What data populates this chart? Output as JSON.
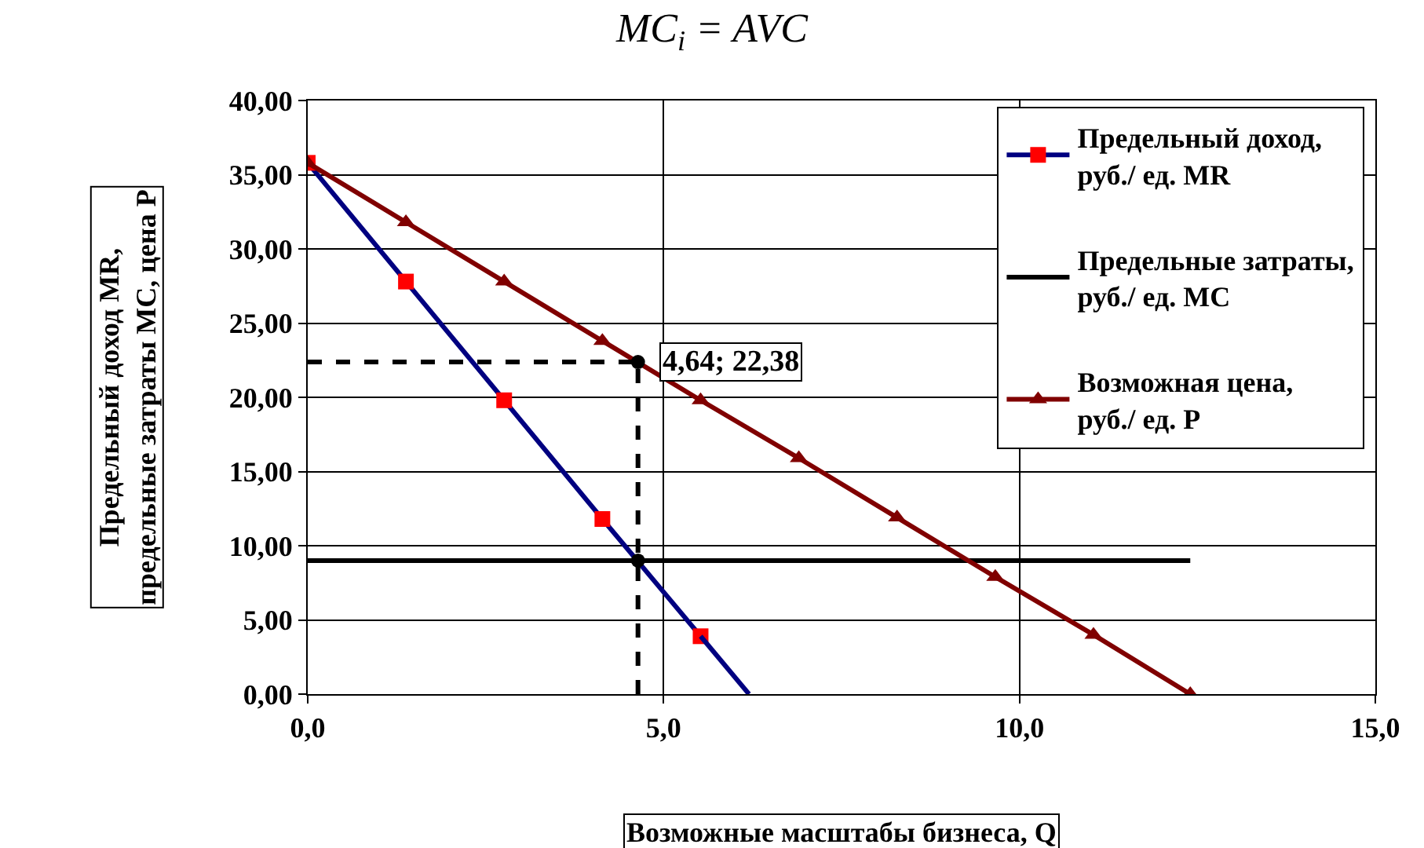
{
  "chart_data": {
    "type": "line",
    "title": "MC$_{i}$ = AVC",
    "xlabel": "Возможные масштабы бизнеса, Q",
    "ylabel": "Предельный доход MR, предельные затраты MC, цена P",
    "series": [
      {
        "name": "Предельный доход, руб./ ед. MR",
        "color": "#000080",
        "colors": [
          "#ff0000",
          "#ff0000",
          "#ff0000",
          "#ff0000",
          "#ff0000"
        ],
        "marker": "square",
        "x": [
          0,
          1.38,
          2.76,
          4.14,
          5.52
        ],
        "values": [
          35.8,
          27.8,
          19.8,
          11.8,
          3.9
        ]
      },
      {
        "type": "line",
        "color": "#000080",
        "marker": "none",
        "x": [
          5.52,
          6.2
        ],
        "values": [
          3.9,
          0
        ]
      },
      {
        "name": "Предельные затраты, руб./ ед. MC",
        "color": "#000000",
        "marker": "none",
        "x": [
          0,
          12.4
        ],
        "values": [
          9.0,
          9.0
        ]
      },
      {
        "name": "Возможная цена, руб./ ед. P",
        "color": "#800000",
        "marker": "triangle",
        "x": [
          0,
          1.38,
          2.76,
          4.14,
          5.52,
          6.9,
          8.28,
          9.66,
          11.04,
          12.4
        ],
        "values": [
          35.8,
          31.8,
          27.8,
          23.8,
          19.8,
          15.9,
          11.9,
          7.9,
          4.0,
          0
        ]
      },
      {
        "type": "line",
        "color": "#000000",
        "marker": "none",
        "line_style": "dashed",
        "x": [
          0,
          4.64
        ],
        "values": [
          22.38,
          22.38
        ]
      },
      {
        "type": "line",
        "color": "#000000",
        "marker": "none",
        "line_style": "dashed",
        "x": [
          4.64,
          4.64
        ],
        "values": [
          0,
          22.38
        ]
      },
      {
        "type": "scatter",
        "color": "#000000",
        "marker": "circle",
        "x": [
          4.64,
          4.64
        ],
        "values": [
          22.38,
          9.0
        ]
      }
    ],
    "annotations": [
      {
        "text": "4,64; 22,38",
        "x": 4.64,
        "y": 22.38
      }
    ],
    "xlim": [
      0,
      15
    ],
    "xticks": [
      {
        "value": 0,
        "label": "0,0"
      },
      {
        "value": 5,
        "label": "5,0"
      },
      {
        "value": 10,
        "label": "10,0"
      },
      {
        "value": 15,
        "label": "15,0"
      }
    ],
    "ylim": [
      0,
      40
    ],
    "yticks": [
      {
        "value": 0,
        "label": "0,00"
      },
      {
        "value": 5,
        "label": "5,00"
      },
      {
        "value": 10,
        "label": "10,00"
      },
      {
        "value": 15,
        "label": "15,00"
      },
      {
        "value": 20,
        "label": "20,00"
      },
      {
        "value": 25,
        "label": "25,00"
      },
      {
        "value": 30,
        "label": "30,00"
      },
      {
        "value": 35,
        "label": "35,00"
      },
      {
        "value": 40,
        "label": "40,00"
      }
    ],
    "grid": true,
    "legend": "top right"
  }
}
